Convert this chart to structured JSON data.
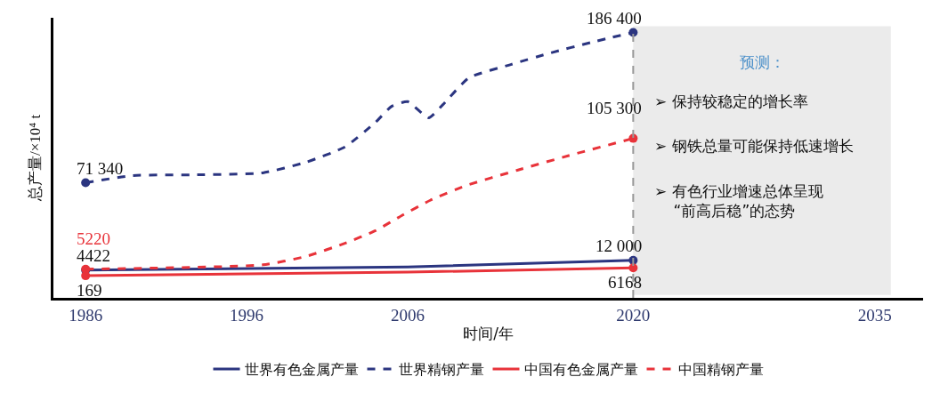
{
  "chart_data": {
    "type": "line",
    "xlabel": "时间/年",
    "ylabel": "总产量/×10⁴ t",
    "xlim": [
      1984,
      2038
    ],
    "xticks": [
      1986,
      1996,
      2006,
      2020,
      2035
    ],
    "series": [
      {
        "name": "世界有色金属产量",
        "color": "#2b3580",
        "line_style": "solid",
        "x": [
          1986,
          2006,
          2020
        ],
        "values": [
          4422,
          6800,
          12000
        ],
        "value_labels": [
          "4422",
          null,
          "12 000"
        ]
      },
      {
        "name": "世界精钢产量",
        "color": "#2b3580",
        "line_style": "dashed",
        "x": [
          1986,
          1988.9,
          1992.9,
          1997,
          1999.7,
          2002.1,
          2004,
          2005,
          2006,
          2007.3,
          2008.2,
          2009.8,
          2012.4,
          2014.9,
          2017.4,
          2020
        ],
        "values": [
          71340,
          76800,
          77400,
          78900,
          87100,
          98700,
          117600,
          129800,
          133400,
          121000,
          131300,
          151700,
          161800,
          170800,
          178800,
          186400
        ],
        "value_labels": [
          "71 340",
          null,
          null,
          null,
          null,
          null,
          null,
          null,
          null,
          null,
          null,
          null,
          null,
          null,
          null,
          "186 400"
        ]
      },
      {
        "name": "中国有色金属产量",
        "color": "#e8333a",
        "line_style": "solid",
        "x": [
          1986,
          2006,
          2020
        ],
        "values": [
          169,
          2900,
          6168
        ],
        "value_labels": [
          "169",
          null,
          "6168"
        ]
      },
      {
        "name": "中国精钢产量",
        "color": "#e8333a",
        "line_style": "dashed",
        "x": [
          1986,
          1997,
          1999.7,
          2002.1,
          2004,
          2005.7,
          2007.4,
          2009.6,
          2012.8,
          2016,
          2020
        ],
        "values": [
          5220,
          8500,
          15000,
          25000,
          34700,
          46700,
          57900,
          69100,
          80900,
          92100,
          105300
        ],
        "value_labels": [
          "5220",
          null,
          null,
          null,
          null,
          null,
          null,
          null,
          null,
          null,
          "105 300"
        ]
      }
    ],
    "bands": [
      {
        "axis": "x",
        "from": 2020,
        "to": 2036,
        "label": "预测：",
        "color": "#ebebeb"
      }
    ],
    "ref_lines": [
      {
        "axis": "x",
        "value": 2020,
        "color": "#999999",
        "line_style": "dashed"
      }
    ],
    "annotations": [
      "➢ 保持较稳定的增长率",
      "➢ 钢铁总量可能保持低速增长",
      "➢ 有色行业增速总体呈现\n“前高后稳”的态势"
    ],
    "legend": "bottom",
    "grid": false
  }
}
